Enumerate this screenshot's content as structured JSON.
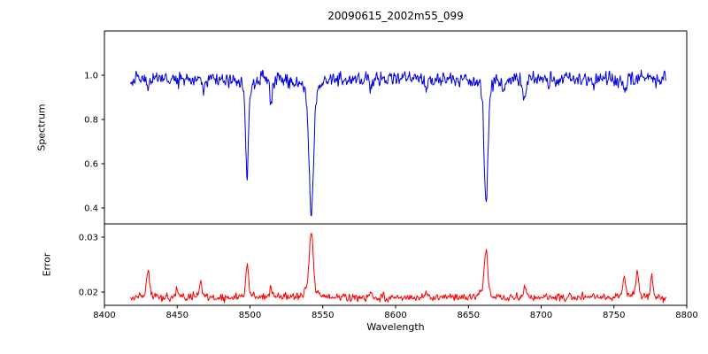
{
  "figure": {
    "title": "20090615_2002m55_099",
    "xlabel": "Wavelength",
    "background": "#ffffff",
    "axis_color": "#000000"
  },
  "chart_data": [
    {
      "type": "line",
      "panel": "spectrum",
      "ylabel": "Spectrum",
      "color": "#0000dd",
      "xlim": [
        8400,
        8800
      ],
      "ylim": [
        0.328,
        1.2
      ],
      "xticks": [
        "8400",
        "8450",
        "8500",
        "8550",
        "8600",
        "8650",
        "8700",
        "8750",
        "8800"
      ],
      "yticks": [
        "0.4",
        "0.6",
        "0.8",
        "1.0"
      ],
      "x_start": 8418,
      "x_end": 8786,
      "x_step": 0.35,
      "baseline": 0.985,
      "noise_std": 0.016,
      "feature_direction": "down",
      "features": [
        {
          "center": 8430.0,
          "amplitude": 0.05,
          "sigma": 0.8
        },
        {
          "center": 8468.0,
          "amplitude": 0.05,
          "sigma": 0.8
        },
        {
          "center": 8498.0,
          "amplitude": 0.45,
          "sigma": 0.9
        },
        {
          "center": 8514.5,
          "amplitude": 0.1,
          "sigma": 0.9
        },
        {
          "center": 8542.1,
          "amplitude": 0.63,
          "sigma": 1.4
        },
        {
          "center": 8583.0,
          "amplitude": 0.035,
          "sigma": 0.7
        },
        {
          "center": 8621.0,
          "amplitude": 0.04,
          "sigma": 0.8
        },
        {
          "center": 8662.1,
          "amplitude": 0.58,
          "sigma": 1.2
        },
        {
          "center": 8674.0,
          "amplitude": 0.05,
          "sigma": 0.7
        },
        {
          "center": 8688.5,
          "amplitude": 0.11,
          "sigma": 0.9
        },
        {
          "center": 8736.0,
          "amplitude": 0.045,
          "sigma": 0.7
        },
        {
          "center": 8757.0,
          "amplitude": 0.055,
          "sigma": 0.8
        }
      ],
      "notable_minima": {
        "8498": 0.53,
        "8542": 0.36,
        "8662": 0.4
      }
    },
    {
      "type": "line",
      "panel": "error",
      "ylabel": "Error",
      "color": "#ff0000",
      "xlim": [
        8400,
        8800
      ],
      "ylim": [
        0.0176,
        0.0324
      ],
      "xticks": [
        "8400",
        "8450",
        "8500",
        "8550",
        "8600",
        "8650",
        "8700",
        "8750",
        "8800"
      ],
      "yticks": [
        "0.02",
        "0.03"
      ],
      "x_start": 8418,
      "x_end": 8786,
      "x_step": 0.35,
      "baseline": 0.019,
      "noise_std": 0.00035,
      "feature_direction": "up",
      "features": [
        {
          "center": 8430.0,
          "amplitude": 0.0045,
          "sigma": 1.0
        },
        {
          "center": 8450.0,
          "amplitude": 0.0018,
          "sigma": 0.8
        },
        {
          "center": 8466.0,
          "amplitude": 0.0028,
          "sigma": 0.9
        },
        {
          "center": 8498.0,
          "amplitude": 0.0058,
          "sigma": 0.9
        },
        {
          "center": 8514.5,
          "amplitude": 0.0018,
          "sigma": 0.8
        },
        {
          "center": 8542.1,
          "amplitude": 0.0122,
          "sigma": 1.3
        },
        {
          "center": 8583.0,
          "amplitude": 0.0012,
          "sigma": 0.7
        },
        {
          "center": 8621.0,
          "amplitude": 0.001,
          "sigma": 0.7
        },
        {
          "center": 8662.1,
          "amplitude": 0.0088,
          "sigma": 1.1
        },
        {
          "center": 8688.5,
          "amplitude": 0.0018,
          "sigma": 0.8
        },
        {
          "center": 8757.0,
          "amplitude": 0.0038,
          "sigma": 0.9
        },
        {
          "center": 8766.0,
          "amplitude": 0.0048,
          "sigma": 0.9
        },
        {
          "center": 8776.0,
          "amplitude": 0.004,
          "sigma": 0.8
        }
      ],
      "notable_maxima": {
        "8542": 0.031,
        "8662": 0.028,
        "8498": 0.025
      }
    }
  ]
}
